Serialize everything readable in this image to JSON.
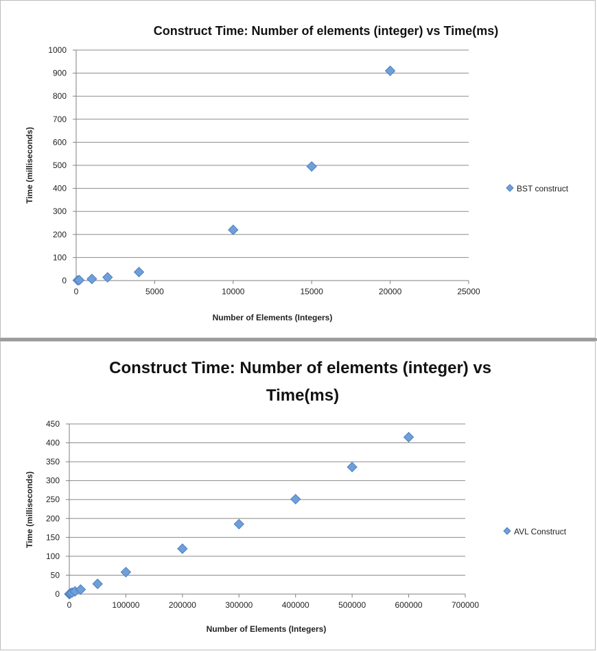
{
  "chart_data": [
    {
      "type": "scatter",
      "title": "Construct Time: Number of elements (integer) vs Time(ms)",
      "xlabel": "Number of Elements (Integers)",
      "ylabel": "Time (milliseconds)",
      "xlim": [
        0,
        25000
      ],
      "ylim": [
        0,
        1000
      ],
      "xticks": [
        "0",
        "5000",
        "10000",
        "15000",
        "20000",
        "25000"
      ],
      "yticks": [
        "0",
        "100",
        "200",
        "300",
        "400",
        "500",
        "600",
        "700",
        "800",
        "900",
        "1000"
      ],
      "grid": true,
      "legend_position": "right",
      "series": [
        {
          "name": "BST construct",
          "color": "#6f9fd8",
          "x": [
            100,
            200,
            1000,
            2000,
            4000,
            10000,
            15000,
            20000
          ],
          "y": [
            1,
            2,
            7,
            14,
            37,
            220,
            495,
            910
          ]
        }
      ]
    },
    {
      "type": "scatter",
      "title": "Construct Time: Number of elements (integer) vs Time(ms)",
      "xlabel": "Number of Elements (Integers)",
      "ylabel": "Time (milliseconds)",
      "xlim": [
        0,
        700000
      ],
      "ylim": [
        0,
        450
      ],
      "xticks": [
        "0",
        "100000",
        "200000",
        "300000",
        "400000",
        "500000",
        "600000",
        "700000"
      ],
      "yticks": [
        "0",
        "50",
        "100",
        "150",
        "200",
        "250",
        "300",
        "350",
        "400",
        "450"
      ],
      "grid": true,
      "legend_position": "right",
      "series": [
        {
          "name": "AVL Construct",
          "color": "#6f9fd8",
          "x": [
            100,
            1000,
            2000,
            5000,
            10000,
            20000,
            50000,
            100000,
            200000,
            300000,
            400000,
            500000,
            600000
          ],
          "y": [
            0,
            1,
            2,
            4,
            7,
            12,
            27,
            58,
            120,
            185,
            251,
            336,
            415
          ]
        }
      ]
    }
  ]
}
